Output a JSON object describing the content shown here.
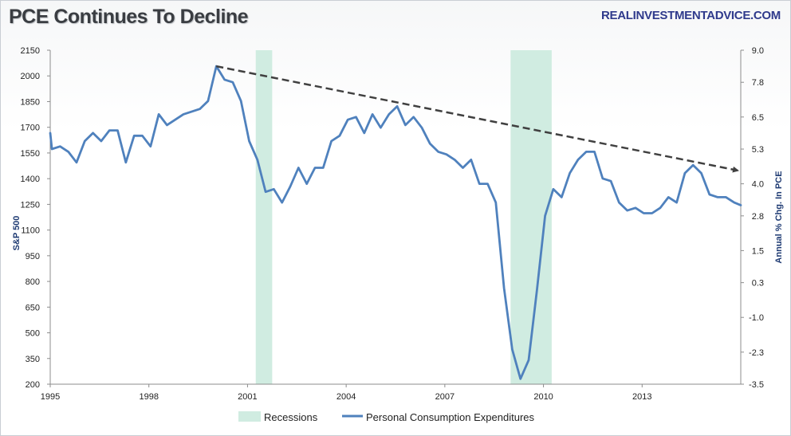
{
  "header": {
    "title": "PCE Continues To Decline",
    "source": "REALINVESTMENTADVICE.COM"
  },
  "chart_data": {
    "type": "line",
    "title": "PCE Continues To Decline",
    "xlabel": "",
    "ylabel_left": "S&P 500",
    "ylabel_right": "Annual % Chg. In PCE",
    "x_tick_labels": [
      "1995",
      "1998",
      "2001",
      "2004",
      "2007",
      "2010",
      "2013"
    ],
    "xlim": [
      1995.0,
      2016.0
    ],
    "left_axis": {
      "ylim": [
        200,
        2150
      ],
      "tick_labels": [
        "200",
        "350",
        "500",
        "650",
        "800",
        "950",
        "1100",
        "1250",
        "1400",
        "1550",
        "1700",
        "1850",
        "2000",
        "2150"
      ]
    },
    "right_axis": {
      "ylim": [
        -3.5,
        9.0
      ],
      "tick_labels": [
        "-3.5",
        "-2.3",
        "-1.0",
        "0.3",
        "1.5",
        "2.8",
        "4.0",
        "5.3",
        "6.5",
        "7.8",
        "9.0"
      ]
    },
    "recessions": [
      {
        "start": 2001.25,
        "end": 2001.75
      },
      {
        "start": 2009.0,
        "end": 2010.25
      }
    ],
    "series": [
      {
        "name": "Personal Consumption Expenditures",
        "axis": "right",
        "color": "#4f81bd",
        "points": [
          [
            1995.0,
            5.9
          ],
          [
            1995.05,
            5.3
          ],
          [
            1995.3,
            5.4
          ],
          [
            1995.55,
            5.2
          ],
          [
            1995.8,
            4.8
          ],
          [
            1996.05,
            5.6
          ],
          [
            1996.3,
            5.9
          ],
          [
            1996.55,
            5.6
          ],
          [
            1996.8,
            6.0
          ],
          [
            1997.05,
            6.0
          ],
          [
            1997.3,
            4.8
          ],
          [
            1997.55,
            5.8
          ],
          [
            1997.8,
            5.8
          ],
          [
            1998.05,
            5.4
          ],
          [
            1998.3,
            6.6
          ],
          [
            1998.55,
            6.2
          ],
          [
            1998.8,
            6.4
          ],
          [
            1999.05,
            6.6
          ],
          [
            1999.3,
            6.7
          ],
          [
            1999.55,
            6.8
          ],
          [
            1999.8,
            7.1
          ],
          [
            2000.05,
            8.4
          ],
          [
            2000.3,
            7.9
          ],
          [
            2000.55,
            7.8
          ],
          [
            2000.8,
            7.1
          ],
          [
            2001.05,
            5.6
          ],
          [
            2001.3,
            4.9
          ],
          [
            2001.55,
            3.7
          ],
          [
            2001.8,
            3.8
          ],
          [
            2002.05,
            3.3
          ],
          [
            2002.3,
            3.9
          ],
          [
            2002.55,
            4.6
          ],
          [
            2002.8,
            4.0
          ],
          [
            2003.05,
            4.6
          ],
          [
            2003.3,
            4.6
          ],
          [
            2003.55,
            5.6
          ],
          [
            2003.8,
            5.8
          ],
          [
            2004.05,
            6.4
          ],
          [
            2004.3,
            6.5
          ],
          [
            2004.55,
            5.9
          ],
          [
            2004.8,
            6.6
          ],
          [
            2005.05,
            6.1
          ],
          [
            2005.3,
            6.6
          ],
          [
            2005.55,
            6.9
          ],
          [
            2005.8,
            6.2
          ],
          [
            2006.05,
            6.5
          ],
          [
            2006.3,
            6.1
          ],
          [
            2006.55,
            5.5
          ],
          [
            2006.8,
            5.2
          ],
          [
            2007.05,
            5.1
          ],
          [
            2007.3,
            4.9
          ],
          [
            2007.55,
            4.6
          ],
          [
            2007.8,
            4.9
          ],
          [
            2008.05,
            4.0
          ],
          [
            2008.3,
            4.0
          ],
          [
            2008.55,
            3.3
          ],
          [
            2008.8,
            0.1
          ],
          [
            2009.05,
            -2.2
          ],
          [
            2009.3,
            -3.3
          ],
          [
            2009.55,
            -2.6
          ],
          [
            2009.8,
            0.0
          ],
          [
            2010.05,
            2.8
          ],
          [
            2010.3,
            3.8
          ],
          [
            2010.55,
            3.5
          ],
          [
            2010.8,
            4.4
          ],
          [
            2011.05,
            4.9
          ],
          [
            2011.3,
            5.2
          ],
          [
            2011.55,
            5.2
          ],
          [
            2011.8,
            4.2
          ],
          [
            2012.05,
            4.1
          ],
          [
            2012.3,
            3.3
          ],
          [
            2012.55,
            3.0
          ],
          [
            2012.8,
            3.1
          ],
          [
            2013.05,
            2.9
          ],
          [
            2013.3,
            2.9
          ],
          [
            2013.55,
            3.1
          ],
          [
            2013.8,
            3.5
          ],
          [
            2014.05,
            3.3
          ],
          [
            2014.3,
            4.4
          ],
          [
            2014.55,
            4.7
          ],
          [
            2014.8,
            4.4
          ],
          [
            2015.05,
            3.6
          ],
          [
            2015.3,
            3.5
          ],
          [
            2015.55,
            3.5
          ],
          [
            2015.8,
            3.3
          ],
          [
            2016.0,
            3.2
          ]
        ]
      }
    ],
    "trend_line": {
      "color": "#404040",
      "style": "dashed",
      "points": [
        [
          2000.05,
          8.4
        ],
        [
          2016.0,
          4.5
        ]
      ]
    },
    "legend": {
      "position": "bottom",
      "items": [
        {
          "label": "Recessions",
          "color": "#d0ece1"
        },
        {
          "label": "Personal Consumption Expenditures",
          "color": "#4f81bd"
        }
      ]
    },
    "grid": false
  }
}
